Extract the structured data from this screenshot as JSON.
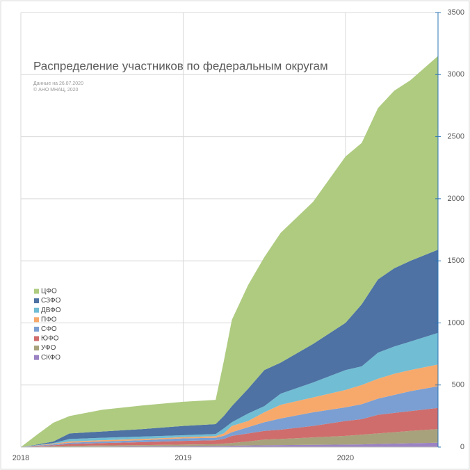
{
  "chart_data": {
    "type": "stacked-area",
    "title": "Распределение участников по федеральным округам",
    "subtitle": [
      "Данные на 26.07.2020",
      "© АНО МНАЦ, 2020"
    ],
    "x": [
      2018,
      2018.1,
      2018.2,
      2018.3,
      2018.5,
      2018.75,
      2019,
      2019.2,
      2019.25,
      2019.3,
      2019.4,
      2019.5,
      2019.6,
      2019.8,
      2020,
      2020.1,
      2020.2,
      2020.3,
      2020.4,
      2020.57
    ],
    "xlim": [
      2018,
      2020.57
    ],
    "xticks": [
      2018,
      2019,
      2020
    ],
    "ylim": [
      0,
      3500
    ],
    "yticks": [
      0,
      500,
      1000,
      1500,
      2000,
      2500,
      3000,
      3500
    ],
    "grid": true,
    "legend": "left",
    "series": [
      {
        "name": "СКФО",
        "color": "#9b83c3",
        "values": [
          0,
          1,
          2,
          3,
          4,
          6,
          8,
          9,
          10,
          11,
          13,
          15,
          16,
          18,
          20,
          22,
          25,
          28,
          31,
          35
        ]
      },
      {
        "name": "УФО",
        "color": "#a8a27c",
        "values": [
          0,
          2,
          4,
          7,
          9,
          10,
          12,
          14,
          18,
          22,
          32,
          45,
          49,
          60,
          70,
          78,
          85,
          92,
          99,
          110
        ]
      },
      {
        "name": "ЮФО",
        "color": "#cf6d6c",
        "values": [
          0,
          5,
          9,
          15,
          19,
          24,
          30,
          32,
          37,
          57,
          65,
          70,
          75,
          92,
          120,
          125,
          150,
          155,
          160,
          170
        ]
      },
      {
        "name": "СФО",
        "color": "#7b9fd2",
        "values": [
          0,
          4,
          7,
          10,
          13,
          15,
          20,
          20,
          25,
          30,
          50,
          70,
          90,
          110,
          110,
          120,
          130,
          145,
          160,
          175
        ]
      },
      {
        "name": "ПФО",
        "color": "#f7a96c",
        "values": [
          0,
          2,
          5,
          10,
          10,
          10,
          10,
          13,
          20,
          50,
          50,
          80,
          110,
          120,
          140,
          155,
          160,
          170,
          170,
          175
        ]
      },
      {
        "name": "ДВФО",
        "color": "#71bdd4",
        "values": [
          0,
          2,
          5,
          20,
          20,
          20,
          15,
          17,
          40,
          30,
          60,
          50,
          90,
          120,
          160,
          150,
          210,
          220,
          230,
          255
        ]
      },
      {
        "name": "СЗФО",
        "color": "#4d72a3",
        "values": [
          0,
          4,
          13,
          45,
          50,
          60,
          75,
          80,
          100,
          130,
          200,
          290,
          250,
          310,
          380,
          500,
          590,
          630,
          650,
          670
        ]
      },
      {
        "name": "ЦФО",
        "color": "#aecb80",
        "values": [
          0,
          80,
          151,
          140,
          175,
          190,
          195,
          195,
          440,
          695,
          835,
          910,
          1045,
          1145,
          1340,
          1300,
          1380,
          1430,
          1455,
          1560
        ]
      }
    ]
  }
}
